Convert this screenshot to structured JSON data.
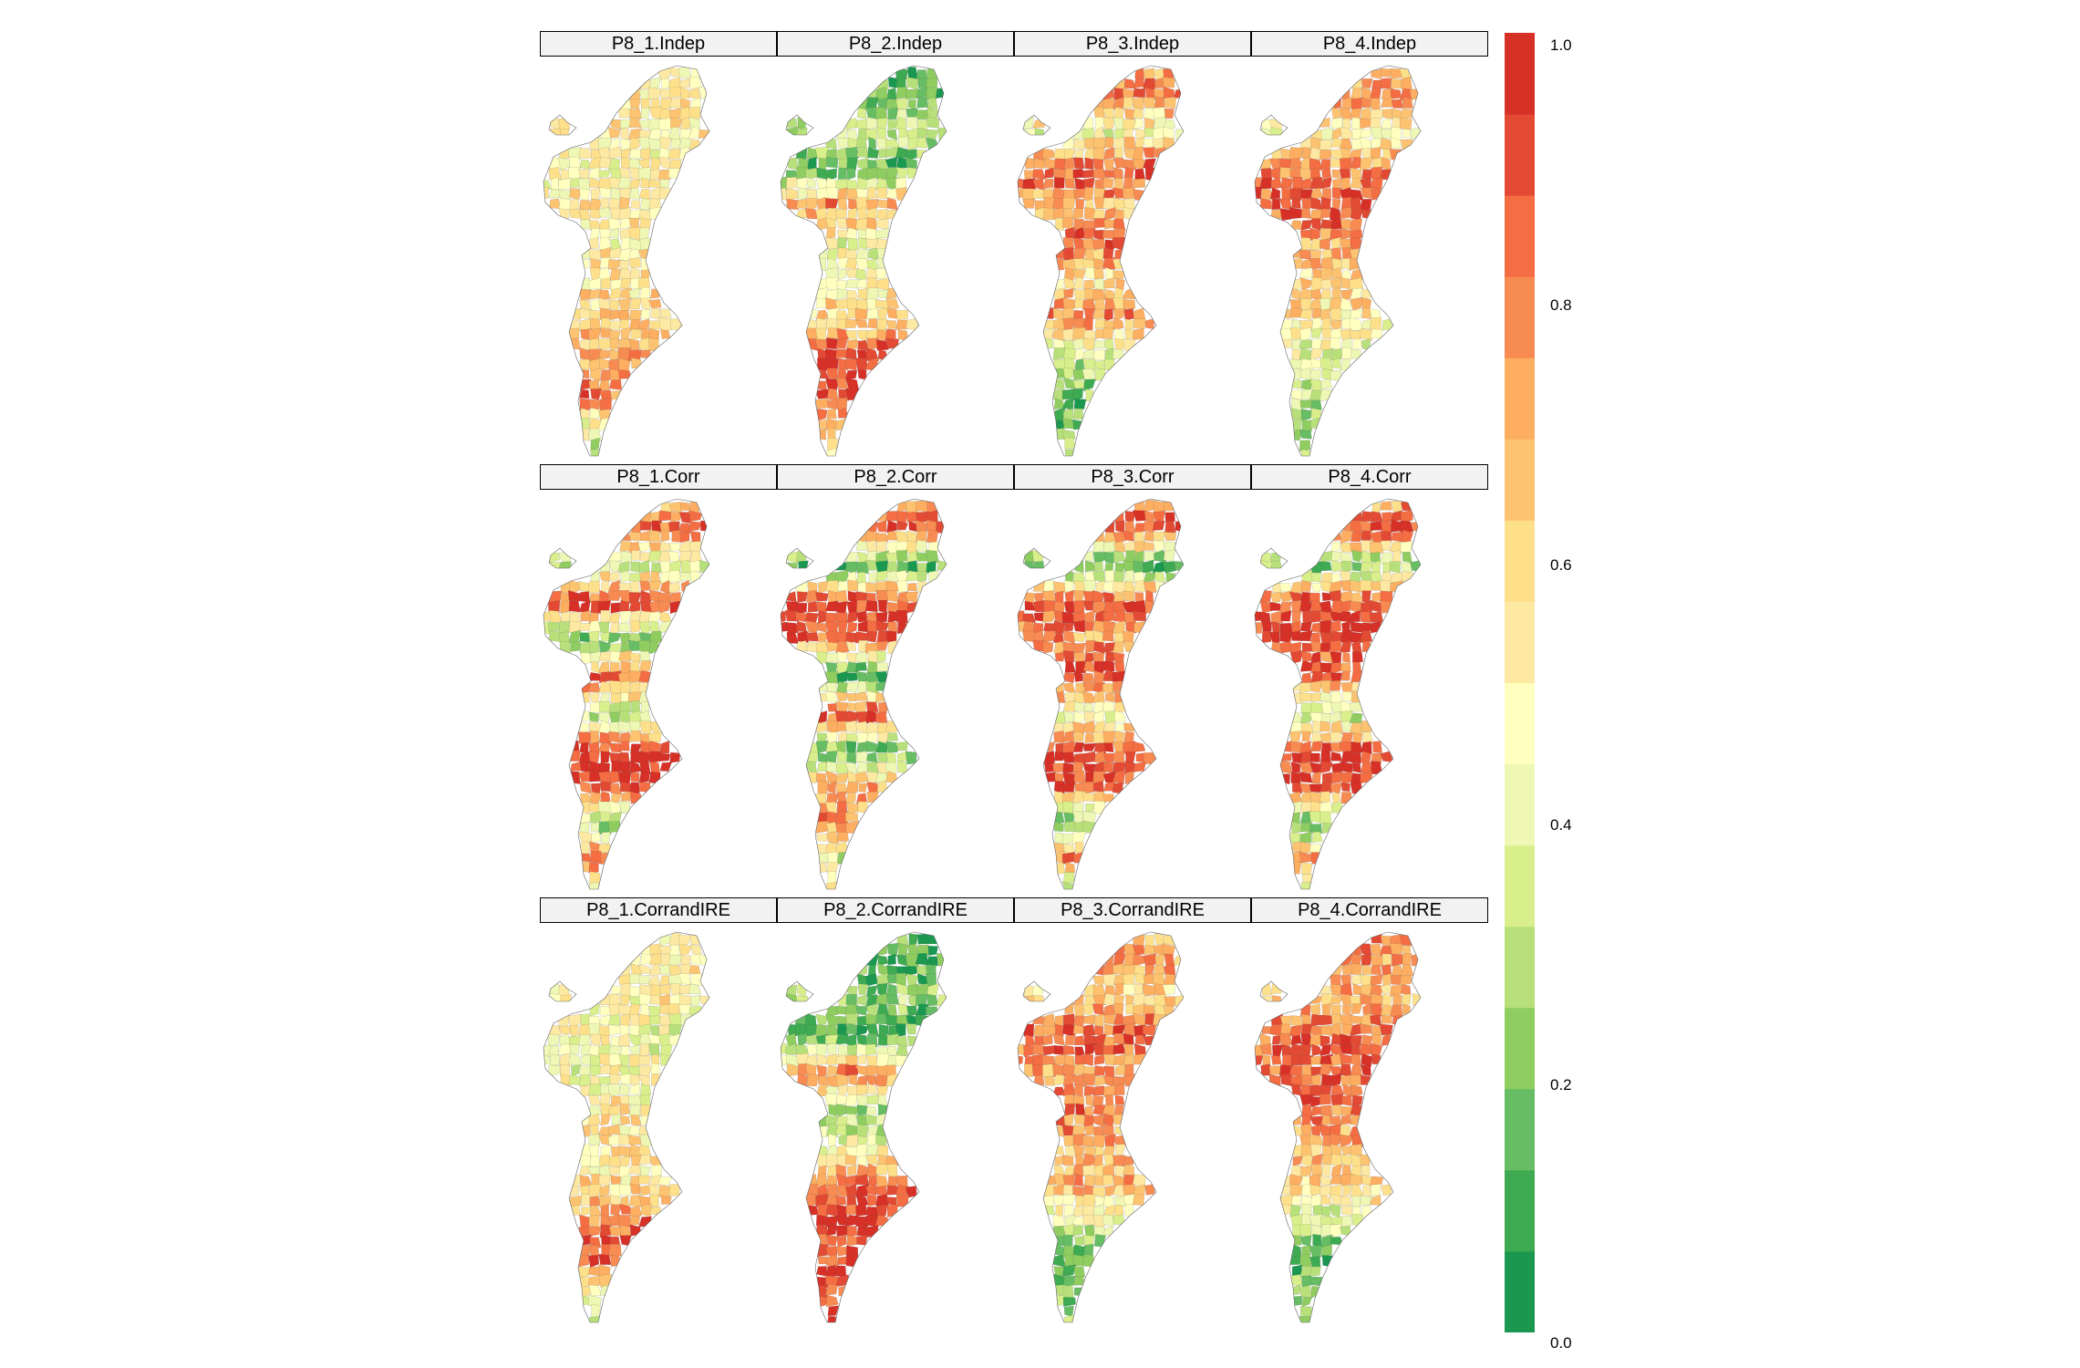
{
  "figure": {
    "rows": [
      [
        "P8_1.Indep",
        "P8_2.Indep",
        "P8_3.Indep",
        "P8_4.Indep"
      ],
      [
        "P8_1.Corr",
        "P8_2.Corr",
        "P8_3.Corr",
        "P8_4.Corr"
      ],
      [
        "P8_1.CorrandIRE",
        "P8_2.CorrandIRE",
        "P8_3.CorrandIRE",
        "P8_4.CorrandIRE"
      ]
    ]
  },
  "colorbar": {
    "tick_labels": [
      "1.0",
      "0.8",
      "0.6",
      "0.4",
      "0.2",
      "0.0"
    ],
    "tick_values": [
      1.0,
      0.8,
      0.6,
      0.4,
      0.2,
      0.0
    ],
    "range": [
      0,
      1
    ],
    "colors": [
      "#1a9850",
      "#3eaa52",
      "#66bd63",
      "#8fcd61",
      "#b8e07a",
      "#d9ef8b",
      "#eef7b3",
      "#ffffbf",
      "#fee9a2",
      "#fee08b",
      "#fdc370",
      "#fdae61",
      "#f88b52",
      "#f46d43",
      "#e34a33",
      "#d73027"
    ]
  },
  "maps": [
    {
      "panel": "P8_1.Indep",
      "profile": [
        0.55,
        0.5,
        0.52,
        0.48,
        0.55,
        0.5,
        0.55,
        0.6,
        0.7,
        0.85,
        0.45,
        0.3
      ]
    },
    {
      "panel": "P8_2.Indep",
      "profile": [
        0.2,
        0.15,
        0.35,
        0.1,
        0.8,
        0.4,
        0.5,
        0.6,
        0.9,
        0.95,
        0.7,
        0.55
      ]
    },
    {
      "panel": "P8_3.Indep",
      "profile": [
        0.6,
        0.85,
        0.4,
        0.9,
        0.65,
        0.85,
        0.55,
        0.8,
        0.35,
        0.2,
        0.15,
        0.2
      ]
    },
    {
      "panel": "P8_4.Indep",
      "profile": [
        0.6,
        0.8,
        0.5,
        0.75,
        0.9,
        0.7,
        0.6,
        0.55,
        0.4,
        0.3,
        0.25,
        0.3
      ]
    },
    {
      "panel": "P8_1.Corr",
      "profile": [
        0.55,
        0.9,
        0.3,
        0.95,
        0.15,
        0.85,
        0.3,
        0.95,
        0.95,
        0.2,
        0.9,
        0.1
      ]
    },
    {
      "panel": "P8_2.Corr",
      "profile": [
        0.5,
        0.9,
        0.1,
        0.95,
        0.85,
        0.05,
        0.9,
        0.15,
        0.7,
        0.8,
        0.3,
        0.85
      ]
    },
    {
      "panel": "P8_3.Corr",
      "profile": [
        0.6,
        0.95,
        0.1,
        0.9,
        0.75,
        0.95,
        0.4,
        0.9,
        0.9,
        0.15,
        0.85,
        0.1
      ]
    },
    {
      "panel": "P8_4.Corr",
      "profile": [
        0.6,
        0.95,
        0.2,
        0.9,
        0.9,
        0.85,
        0.25,
        0.9,
        0.95,
        0.1,
        0.8,
        0.1
      ]
    },
    {
      "panel": "P8_1.CorrandIRE",
      "profile": [
        0.55,
        0.5,
        0.5,
        0.45,
        0.45,
        0.5,
        0.55,
        0.55,
        0.8,
        0.95,
        0.4,
        0.3
      ]
    },
    {
      "panel": "P8_2.CorrandIRE",
      "profile": [
        0.15,
        0.1,
        0.25,
        0.1,
        0.8,
        0.3,
        0.4,
        0.85,
        0.95,
        0.9,
        0.9,
        0.95
      ]
    },
    {
      "panel": "P8_3.CorrandIRE",
      "profile": [
        0.75,
        0.7,
        0.6,
        0.9,
        0.7,
        0.85,
        0.65,
        0.7,
        0.4,
        0.15,
        0.2,
        0.3
      ]
    },
    {
      "panel": "P8_4.CorrandIRE",
      "profile": [
        0.8,
        0.75,
        0.65,
        0.85,
        0.85,
        0.8,
        0.7,
        0.6,
        0.35,
        0.15,
        0.2,
        0.35
      ]
    }
  ]
}
